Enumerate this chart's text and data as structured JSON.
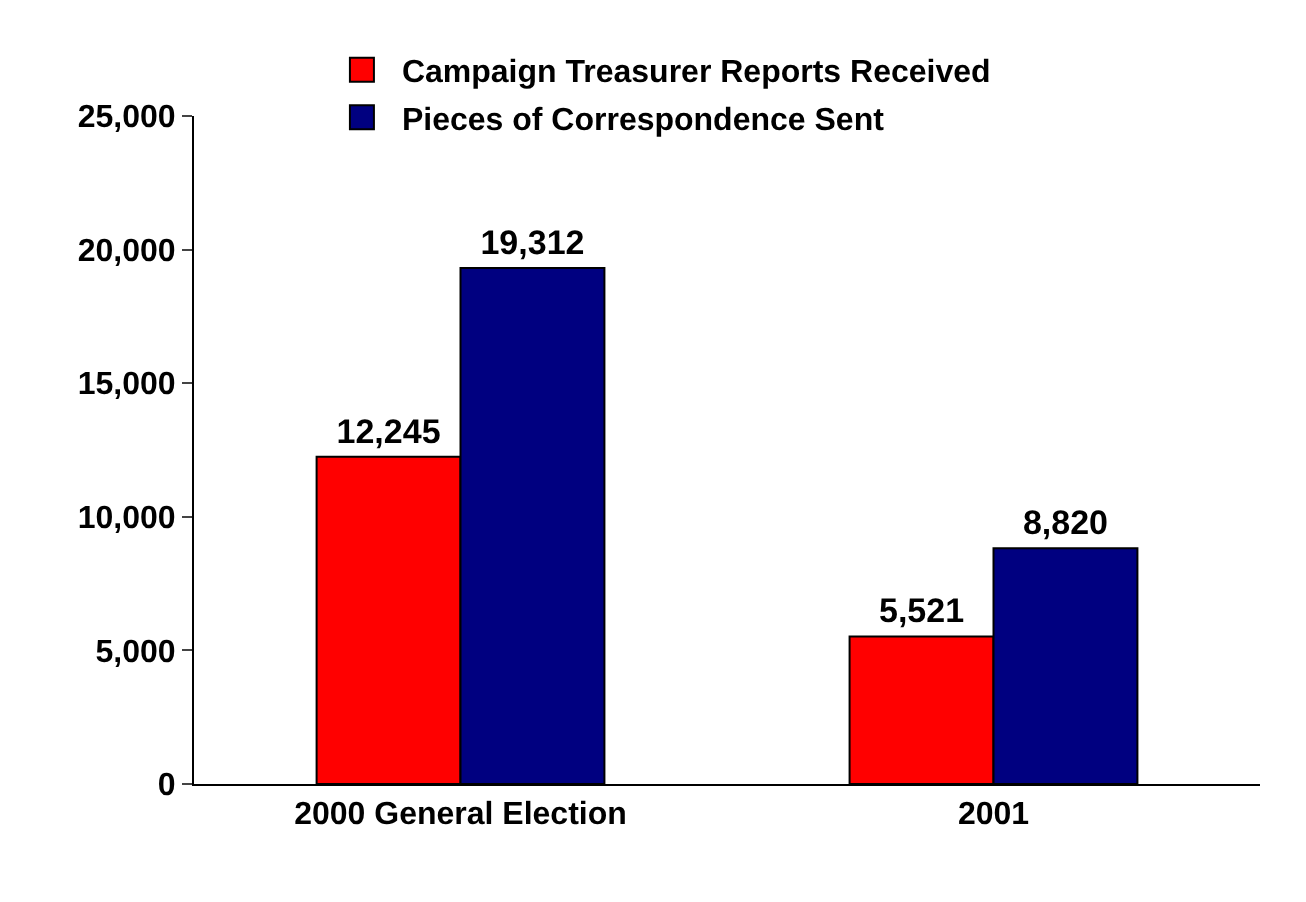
{
  "chart_data": {
    "type": "bar",
    "categories": [
      "2000 General Election",
      "2001"
    ],
    "series": [
      {
        "name": "Campaign Treasurer Reports Received",
        "color": "#ff0000",
        "values": [
          12245,
          5521
        ],
        "value_labels": [
          "12,245",
          "5,521"
        ]
      },
      {
        "name": "Pieces of Correspondence Sent",
        "color": "#000080",
        "values": [
          19312,
          8820
        ],
        "value_labels": [
          "19,312",
          "8,820"
        ]
      }
    ],
    "ylim": [
      0,
      25000
    ],
    "yticks": [
      {
        "value": 0,
        "label": "0"
      },
      {
        "value": 5000,
        "label": "5,000"
      },
      {
        "value": 10000,
        "label": "10,000"
      },
      {
        "value": 15000,
        "label": "15,000"
      },
      {
        "value": 20000,
        "label": "20,000"
      },
      {
        "value": 25000,
        "label": "25,000"
      }
    ],
    "legend": "top"
  }
}
